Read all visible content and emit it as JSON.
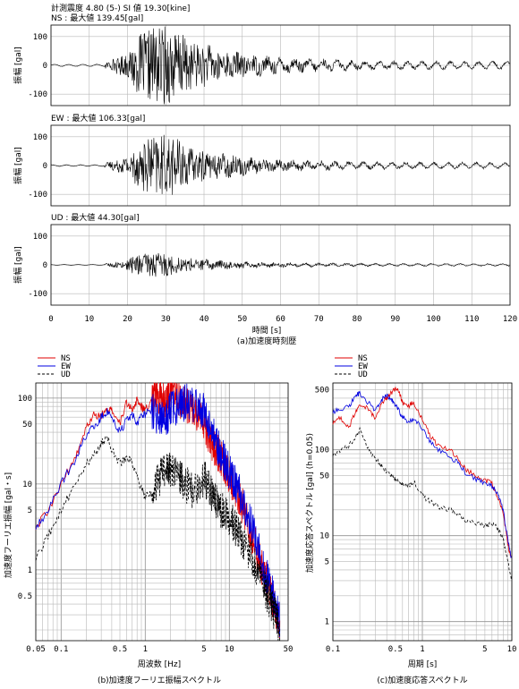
{
  "header": {
    "line1": "計測震度 4.80 (5-) SI 値 19.30[kine]"
  },
  "colors": {
    "NS": "#e00000",
    "EW": "#0000e0",
    "UD": "#000000"
  },
  "chart_data": [
    {
      "id": "time-history",
      "type": "line",
      "caption": "(a)加速度時刻歴",
      "xlabel": "時間 [s]",
      "ylabel": "振幅 [gal]",
      "xlim": [
        0,
        120
      ],
      "xticks": [
        0,
        10,
        20,
        30,
        40,
        50,
        60,
        70,
        80,
        90,
        100,
        110,
        120
      ],
      "ylim": [
        -140,
        140
      ],
      "yticks": [
        100,
        0,
        -100
      ],
      "panels": [
        {
          "component": "NS",
          "label": "NS : 最大値 139.45[gal]",
          "peak": 139.45,
          "onset": 14,
          "strong_start": 21,
          "strong_end": 37
        },
        {
          "component": "EW",
          "label": "EW : 最大値 106.33[gal]",
          "peak": 106.33,
          "onset": 14,
          "strong_start": 21,
          "strong_end": 37
        },
        {
          "component": "UD",
          "label": "UD : 最大値 44.30[gal]",
          "peak": 44.3,
          "onset": 14,
          "strong_start": 20,
          "strong_end": 34
        }
      ]
    },
    {
      "id": "fourier-spectrum",
      "type": "line",
      "caption": "(b)加速度フーリエ振幅スペクトル",
      "xlabel": "周波数 [Hz]",
      "ylabel": "加速度フーリエ振幅 [gal・s]",
      "xscale": "log",
      "yscale": "log",
      "xlim": [
        0.05,
        50
      ],
      "ylim": [
        0.15,
        150
      ],
      "xtick_labels": [
        "0.05",
        "0.1",
        "0.5",
        "1",
        "5",
        "10",
        "50"
      ],
      "xtick_values": [
        0.05,
        0.1,
        0.5,
        1,
        5,
        10,
        50
      ],
      "ytick_labels": [
        "0.5",
        "1",
        "5",
        "10",
        "50",
        "100"
      ],
      "ytick_values": [
        0.5,
        1,
        5,
        10,
        50,
        100
      ],
      "legend": [
        "NS",
        "EW",
        "UD"
      ],
      "series": [
        {
          "name": "NS",
          "x": [
            0.05,
            0.07,
            0.1,
            0.15,
            0.2,
            0.25,
            0.3,
            0.35,
            0.4,
            0.5,
            0.6,
            0.7,
            0.8,
            0.9,
            1,
            1.2,
            1.5,
            1.8,
            2,
            2.5,
            3,
            4,
            5,
            6,
            7,
            8,
            10,
            12,
            15,
            20,
            25,
            30,
            35,
            40
          ],
          "y": [
            3,
            5,
            10,
            22,
            45,
            65,
            62,
            75,
            70,
            50,
            90,
            75,
            95,
            80,
            70,
            100,
            110,
            85,
            140,
            100,
            80,
            70,
            50,
            30,
            25,
            20,
            12,
            8,
            5,
            2,
            1,
            0.6,
            0.35,
            0.25
          ]
        },
        {
          "name": "EW",
          "x": [
            0.05,
            0.07,
            0.1,
            0.15,
            0.2,
            0.25,
            0.3,
            0.35,
            0.4,
            0.5,
            0.6,
            0.7,
            0.8,
            0.9,
            1,
            1.2,
            1.5,
            1.8,
            2,
            2.5,
            3,
            4,
            5,
            6,
            7,
            8,
            10,
            12,
            15,
            20,
            25,
            30,
            35,
            40
          ],
          "y": [
            3,
            5,
            10,
            20,
            38,
            48,
            60,
            70,
            60,
            40,
            55,
            65,
            50,
            60,
            65,
            70,
            55,
            60,
            75,
            80,
            90,
            85,
            70,
            45,
            30,
            22,
            14,
            10,
            6,
            2.5,
            1.2,
            0.7,
            0.4,
            0.25
          ]
        },
        {
          "name": "UD",
          "x": [
            0.05,
            0.07,
            0.1,
            0.15,
            0.2,
            0.25,
            0.3,
            0.35,
            0.4,
            0.5,
            0.6,
            0.7,
            0.8,
            0.9,
            1,
            1.2,
            1.5,
            1.8,
            2,
            2.5,
            3,
            4,
            5,
            6,
            7,
            8,
            10,
            12,
            15,
            20,
            25,
            30,
            35,
            40
          ],
          "y": [
            1.3,
            2.5,
            5,
            10,
            17,
            22,
            30,
            35,
            25,
            17,
            20,
            18,
            12,
            9,
            7,
            8,
            12,
            15,
            14,
            13,
            10,
            8,
            12,
            8,
            6,
            5,
            4,
            3,
            2,
            1.2,
            0.7,
            0.45,
            0.3,
            0.2
          ]
        }
      ]
    },
    {
      "id": "response-spectrum",
      "type": "line",
      "caption": "(c)加速度応答スペクトル",
      "xlabel": "周期 [s]",
      "ylabel": "加速度応答スペクトル [gal] (h=0.05)",
      "xscale": "log",
      "yscale": "log",
      "xlim": [
        0.1,
        10
      ],
      "ylim": [
        0.6,
        600
      ],
      "xtick_labels": [
        "0.1",
        "0.5",
        "1",
        "5",
        "10"
      ],
      "xtick_values": [
        0.1,
        0.5,
        1,
        5,
        10
      ],
      "ytick_labels": [
        "1",
        "5",
        "10",
        "50",
        "100",
        "500"
      ],
      "ytick_values": [
        1,
        5,
        10,
        50,
        100,
        500
      ],
      "legend": [
        "NS",
        "EW",
        "UD"
      ],
      "series": [
        {
          "name": "NS",
          "x": [
            0.1,
            0.12,
            0.15,
            0.18,
            0.2,
            0.25,
            0.3,
            0.35,
            0.4,
            0.45,
            0.5,
            0.55,
            0.6,
            0.7,
            0.8,
            1,
            1.2,
            1.5,
            2,
            2.5,
            3,
            4,
            5,
            6,
            7,
            8,
            9,
            10
          ],
          "y": [
            200,
            240,
            180,
            280,
            330,
            300,
            230,
            350,
            400,
            460,
            520,
            480,
            350,
            320,
            360,
            230,
            150,
            110,
            100,
            80,
            60,
            50,
            45,
            40,
            28,
            18,
            8,
            5
          ]
        },
        {
          "name": "EW",
          "x": [
            0.1,
            0.12,
            0.15,
            0.18,
            0.2,
            0.25,
            0.3,
            0.35,
            0.4,
            0.45,
            0.5,
            0.55,
            0.6,
            0.7,
            0.8,
            1,
            1.2,
            1.5,
            2,
            2.5,
            3,
            4,
            5,
            6,
            7,
            8,
            9,
            10
          ],
          "y": [
            270,
            300,
            320,
            420,
            460,
            350,
            290,
            380,
            430,
            380,
            330,
            280,
            240,
            210,
            230,
            180,
            130,
            100,
            85,
            70,
            55,
            45,
            40,
            38,
            30,
            20,
            9,
            5
          ]
        },
        {
          "name": "UD",
          "x": [
            0.1,
            0.12,
            0.15,
            0.18,
            0.2,
            0.25,
            0.3,
            0.35,
            0.4,
            0.45,
            0.5,
            0.55,
            0.6,
            0.7,
            0.8,
            1,
            1.2,
            1.5,
            2,
            2.5,
            3,
            4,
            5,
            6,
            7,
            8,
            9,
            10
          ],
          "y": [
            85,
            95,
            110,
            140,
            170,
            100,
            80,
            65,
            55,
            50,
            45,
            42,
            40,
            38,
            42,
            30,
            25,
            22,
            20,
            18,
            15,
            14,
            13,
            14,
            12,
            9,
            5,
            3
          ]
        }
      ]
    }
  ]
}
